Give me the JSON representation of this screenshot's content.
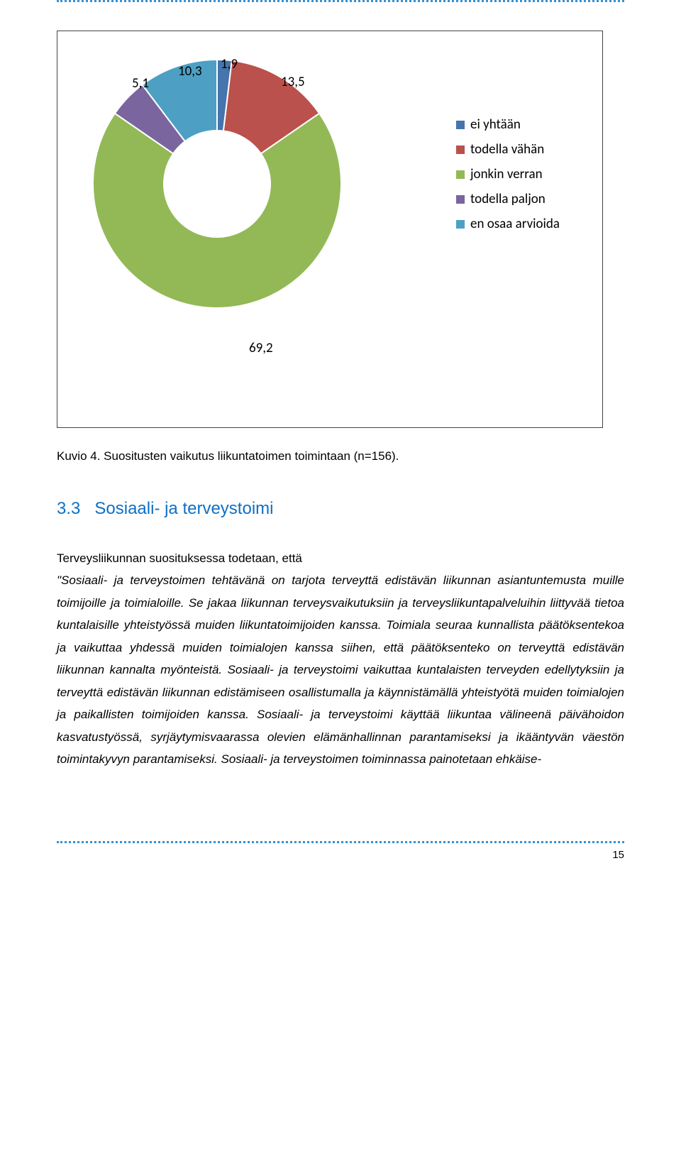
{
  "chart": {
    "type": "donut",
    "slices": [
      {
        "label": "1,9",
        "value": 1.9,
        "color": "#4674ad"
      },
      {
        "label": "13,5",
        "value": 13.5,
        "color": "#ba514c"
      },
      {
        "label": "69,2",
        "value": 69.2,
        "color": "#93b956"
      },
      {
        "label": "5,1",
        "value": 5.1,
        "color": "#7b659e"
      },
      {
        "label": "10,3",
        "value": 10.3,
        "color": "#4da0c3"
      }
    ],
    "legend": [
      {
        "text": "ei yhtään",
        "color": "#4674ad"
      },
      {
        "text": "todella vähän",
        "color": "#ba514c"
      },
      {
        "text": "jonkin verran",
        "color": "#93b956"
      },
      {
        "text": "todella paljon",
        "color": "#7b659e"
      },
      {
        "text": "en osaa arvioida",
        "color": "#4da0c3"
      }
    ],
    "label_font_size": 19,
    "legend_font_size": 19,
    "outer_radius": 175,
    "inner_radius": 75
  },
  "caption": "Kuvio 4. Suositusten vaikutus liikuntatoimen toimintaan (n=156).",
  "heading_number": "3.3",
  "heading_text": "Sosiaali- ja terveystoimi",
  "body_lead": "Terveysliikunnan suosituksessa todetaan, että",
  "body_quote": "\"Sosiaali- ja terveystoimen tehtävänä on tarjota terveyttä edistävän liikunnan asiantuntemusta muille toimijoille ja toimialoille. Se jakaa liikunnan terveysvaikutuksiin ja terveysliikuntapalveluihin liittyvää tietoa kuntalaisille yhteistyössä muiden liikuntatoimijoiden kanssa. Toimiala seuraa kunnallista päätöksentekoa ja vaikuttaa yhdessä muiden toimialojen kanssa siihen, että päätöksenteko on terveyttä edistävän liikunnan kannalta myönteistä. Sosiaali- ja terveystoimi vaikuttaa kuntalaisten terveyden edellytyksiin ja terveyttä edistävän liikunnan edistämiseen osallistumalla ja käynnistämällä yhteistyötä muiden toimialojen ja paikallisten toimijoiden kanssa. Sosiaali- ja terveystoimi käyttää liikuntaa välineenä päivähoidon kasvatustyössä, syrjäytymisvaarassa olevien elämänhallinnan parantamiseksi ja ikääntyvän väestön toimintakyvyn parantamiseksi. Sosiaali- ja terveystoimen toiminnassa painotetaan ehkäise-",
  "page_number": "15",
  "colors": {
    "heading": "#0f6fc5",
    "dotted_border": "#3a8fcf",
    "text": "#000000"
  }
}
